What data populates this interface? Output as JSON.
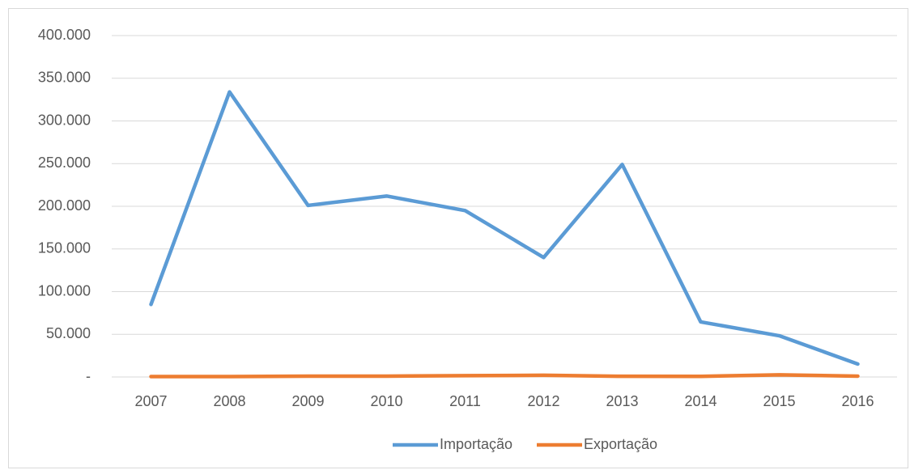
{
  "chart_data": {
    "type": "line",
    "categories": [
      "2007",
      "2008",
      "2009",
      "2010",
      "2011",
      "2012",
      "2013",
      "2014",
      "2015",
      "2016"
    ],
    "series": [
      {
        "name": "Importação",
        "color": "#5b9bd5",
        "values": [
          85000,
          334000,
          201000,
          212000,
          195000,
          140000,
          249000,
          64500,
          48300,
          15200
        ]
      },
      {
        "name": "Exportação",
        "color": "#ed7d31",
        "values": [
          500,
          500,
          1000,
          1000,
          1500,
          2000,
          800,
          700,
          2500,
          1000
        ]
      }
    ],
    "ylim": [
      0,
      400000
    ],
    "yticks": [
      {
        "value": 0,
        "label": "-"
      },
      {
        "value": 50000,
        "label": "50.000"
      },
      {
        "value": 100000,
        "label": "100.000"
      },
      {
        "value": 150000,
        "label": "150.000"
      },
      {
        "value": 200000,
        "label": "200.000"
      },
      {
        "value": 250000,
        "label": "250.000"
      },
      {
        "value": 300000,
        "label": "300.000"
      },
      {
        "value": 350000,
        "label": "350.000"
      },
      {
        "value": 400000,
        "label": "400.000"
      }
    ],
    "grid": true,
    "legend": "bottom"
  }
}
